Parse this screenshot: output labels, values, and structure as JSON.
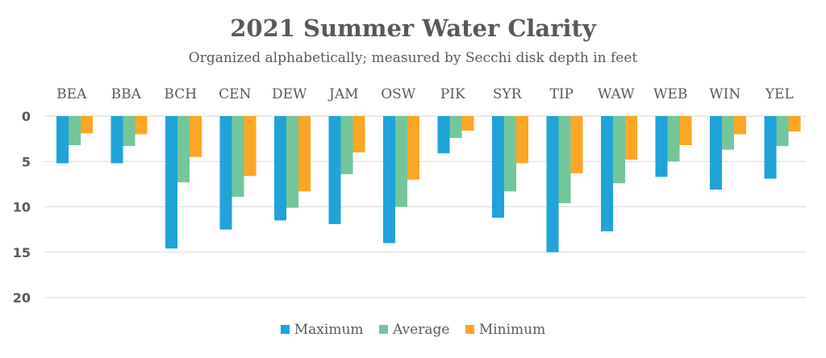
{
  "chart_data": {
    "type": "bar",
    "title": "2021 Summer Water Clarity",
    "subtitle": "Organized alphabetically; measured by Secchi disk depth in feet",
    "categories": [
      "BEA",
      "BBA",
      "BCH",
      "CEN",
      "DEW",
      "JAM",
      "OSW",
      "PIK",
      "SYR",
      "TIP",
      "WAW",
      "WEB",
      "WIN",
      "YEL"
    ],
    "series": [
      {
        "name": "Maximum",
        "color": "#1fa3d9",
        "values": [
          5.2,
          5.2,
          14.6,
          12.5,
          11.5,
          11.9,
          14.0,
          4.1,
          11.2,
          15.0,
          12.7,
          6.7,
          8.1,
          6.9
        ]
      },
      {
        "name": "Average",
        "color": "#74c69a",
        "values": [
          3.2,
          3.3,
          7.3,
          8.9,
          10.1,
          6.4,
          10.0,
          2.4,
          8.3,
          9.6,
          7.4,
          5.0,
          3.7,
          3.3
        ]
      },
      {
        "name": "Minimum",
        "color": "#fca625",
        "values": [
          1.9,
          2.0,
          4.5,
          6.6,
          8.3,
          4.0,
          7.0,
          1.6,
          5.2,
          6.3,
          4.8,
          3.2,
          2.0,
          1.7
        ]
      }
    ],
    "y_ticks": [
      "0",
      "5",
      "10",
      "15",
      "20"
    ],
    "ylim": [
      0,
      20
    ],
    "y_inverted": true,
    "x_axis_position": "top",
    "grid": true,
    "legend": "bottom"
  }
}
